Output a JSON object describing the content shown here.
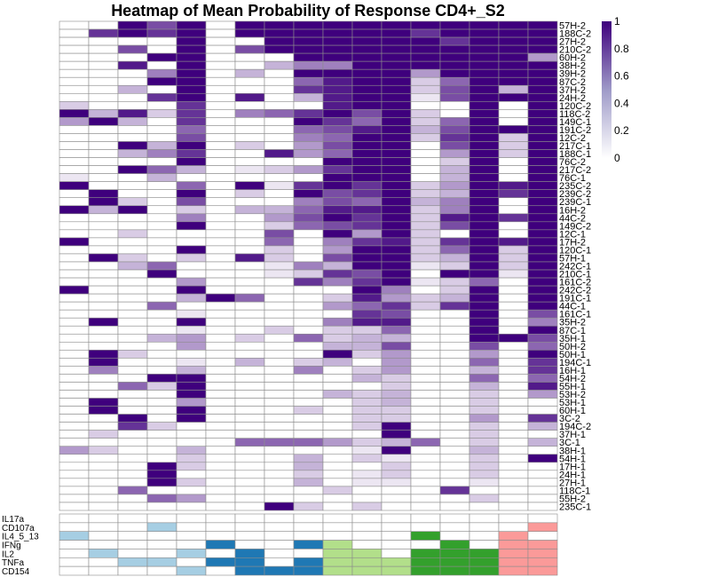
{
  "chart_data": {
    "type": "heatmap",
    "title": "Heatmap of Mean Probability of Response CD4+_S2",
    "n_columns": 17,
    "row_labels": [
      "57H-2",
      "188C-2",
      "27H-2",
      "210C-2",
      "60H-2",
      "38H-2",
      "39H-2",
      "87C-2",
      "37H-2",
      "24H-2",
      "120C-2",
      "118C-2",
      "149C-1",
      "191C-2",
      "12C-2",
      "217C-1",
      "188C-1",
      "76C-2",
      "217C-2",
      "76C-1",
      "235C-2",
      "239C-2",
      "239C-1",
      "16H-2",
      "44C-2",
      "149C-2",
      "12C-1",
      "17H-2",
      "120C-1",
      "57H-1",
      "242C-1",
      "210C-1",
      "161C-2",
      "242C-2",
      "191C-1",
      "44C-1",
      "161C-1",
      "35H-2",
      "87C-1",
      "35H-1",
      "50H-2",
      "50H-1",
      "194C-1",
      "16H-1",
      "54H-2",
      "55H-1",
      "53H-2",
      "53H-1",
      "60H-1",
      "3C-2",
      "194C-2",
      "37H-1",
      "3C-1",
      "38H-1",
      "54H-1",
      "17H-1",
      "24H-1",
      "27H-1",
      "118C-1",
      "55H-2",
      "235C-1"
    ],
    "values": [
      [
        0,
        0,
        1,
        0.7,
        1,
        0,
        1,
        1,
        1,
        1,
        1,
        1,
        1,
        1,
        1,
        1,
        1
      ],
      [
        0,
        0.8,
        1,
        0.8,
        1,
        0,
        1,
        1,
        1,
        1,
        1,
        1,
        0.8,
        1,
        1,
        1,
        1
      ],
      [
        0,
        0,
        0,
        0,
        1,
        0,
        0,
        1,
        1,
        1,
        1,
        1,
        1,
        0.8,
        1,
        1,
        1
      ],
      [
        0,
        0,
        0.7,
        0,
        1,
        0,
        0.7,
        1,
        1,
        1,
        1,
        1,
        1,
        1,
        1,
        1,
        1
      ],
      [
        0,
        0,
        0,
        1,
        1,
        0,
        0,
        0,
        1,
        1,
        1,
        1,
        1,
        1,
        1,
        1,
        0.4
      ],
      [
        0,
        0,
        0.9,
        0,
        1,
        0,
        0,
        0.3,
        0.5,
        0.5,
        1,
        1,
        1,
        1,
        1,
        1,
        1
      ],
      [
        0,
        0,
        0,
        0.5,
        1,
        0,
        0.3,
        0,
        1,
        1,
        1,
        1,
        0.4,
        1,
        1,
        1,
        1
      ],
      [
        0,
        0,
        0,
        1,
        1,
        0,
        0,
        0,
        0.6,
        0.9,
        1,
        1,
        0.2,
        0.6,
        1,
        1,
        1
      ],
      [
        0,
        0,
        0.3,
        0,
        1,
        0,
        0,
        0,
        0.8,
        0.9,
        1,
        1,
        0.2,
        0.7,
        1,
        0.3,
        1
      ],
      [
        0,
        0,
        0,
        0.8,
        1,
        0,
        0.9,
        0,
        0.3,
        0.9,
        1,
        1,
        0.1,
        0.7,
        1,
        1,
        1
      ],
      [
        0.2,
        0,
        0,
        0,
        0.8,
        0,
        0,
        0,
        0,
        0.9,
        1,
        1,
        0,
        0,
        1,
        0,
        1
      ],
      [
        1,
        0.3,
        0.9,
        0.2,
        0.8,
        0,
        0.5,
        0.6,
        0.8,
        1,
        0.7,
        1,
        0.2,
        0,
        1,
        0,
        1
      ],
      [
        0.4,
        1,
        0.3,
        0,
        0.8,
        0,
        0,
        0,
        1,
        0.8,
        0.6,
        1,
        0.2,
        0.6,
        1,
        0,
        1
      ],
      [
        0,
        0,
        0,
        0,
        0.6,
        0,
        0,
        0,
        0.6,
        0.7,
        0.9,
        1,
        0.3,
        0.7,
        1,
        1,
        1
      ],
      [
        0,
        0,
        0,
        0,
        0.7,
        0,
        0,
        0,
        0.5,
        0.6,
        1,
        1,
        0.2,
        0.8,
        1,
        0.2,
        1
      ],
      [
        0,
        0,
        1,
        0.3,
        1,
        0,
        0.2,
        0,
        0.4,
        0.7,
        1,
        1,
        0,
        0.7,
        1,
        0.2,
        1
      ],
      [
        0,
        0,
        0.3,
        0.5,
        0.8,
        0,
        0,
        0.9,
        0.4,
        0.6,
        1,
        1,
        0,
        0.4,
        1,
        0.2,
        1
      ],
      [
        0,
        0,
        0,
        0,
        1,
        0,
        0,
        0,
        0,
        1,
        1,
        1,
        0,
        0.2,
        1,
        0,
        1
      ],
      [
        0,
        0,
        1,
        0.6,
        0.3,
        0,
        0.1,
        0.2,
        0.4,
        0.8,
        1,
        1,
        0,
        0.3,
        1,
        0,
        1
      ],
      [
        0.1,
        0,
        0,
        0.3,
        0,
        0,
        0,
        0,
        0,
        1,
        1,
        1,
        0,
        0.3,
        1,
        0,
        1
      ],
      [
        1,
        0,
        0,
        0,
        0.6,
        0,
        1,
        0.1,
        0.8,
        1,
        0.8,
        1,
        0.2,
        0.4,
        1,
        0.9,
        1
      ],
      [
        0,
        1,
        0,
        0,
        1,
        0,
        0.2,
        0,
        1,
        0.7,
        0.8,
        1,
        0.2,
        0.3,
        1,
        0.8,
        1
      ],
      [
        0,
        1,
        0.2,
        0,
        0.7,
        0,
        0,
        0,
        0.5,
        0.7,
        0.6,
        1,
        0.3,
        0.5,
        1,
        0,
        1
      ],
      [
        1,
        0.3,
        1,
        0,
        0.2,
        0,
        0.3,
        0.3,
        0.6,
        0.9,
        0.9,
        1,
        0.2,
        0.5,
        1,
        0,
        1
      ],
      [
        0,
        0,
        0,
        0,
        0.5,
        0,
        0,
        0.4,
        0.7,
        1,
        0.8,
        1,
        0.2,
        0.9,
        1,
        0.8,
        1
      ],
      [
        0,
        0,
        0,
        0,
        1,
        0,
        0,
        0.2,
        0.6,
        0.7,
        0.8,
        1,
        0.2,
        0.7,
        1,
        0,
        1
      ],
      [
        0,
        0,
        0.2,
        0,
        0,
        0,
        0,
        0.7,
        0,
        1,
        0.4,
        1,
        0.2,
        0,
        1,
        0,
        1
      ],
      [
        1,
        0,
        0,
        0,
        0,
        0,
        0,
        0.6,
        0,
        0.5,
        0.8,
        0.9,
        0.2,
        0.8,
        1,
        0.9,
        1
      ],
      [
        0,
        0,
        0,
        0,
        1,
        0,
        0,
        0.2,
        0,
        0.4,
        1,
        1,
        0.2,
        0.6,
        1,
        0.2,
        1
      ],
      [
        0,
        1,
        0.2,
        0,
        0.2,
        0,
        0.9,
        0.2,
        0,
        0.7,
        1,
        1,
        0.2,
        0.3,
        1,
        0.2,
        1
      ],
      [
        0,
        0,
        0.3,
        0.6,
        0,
        0,
        0,
        0.1,
        0.5,
        0.3,
        1,
        1,
        0.1,
        0.2,
        1,
        0.2,
        1
      ],
      [
        0,
        0,
        0,
        1,
        0,
        0,
        0,
        0.1,
        0.2,
        0.8,
        0.7,
        1,
        0,
        1,
        1,
        0.1,
        1
      ],
      [
        0,
        0,
        0,
        0,
        0.4,
        0,
        0,
        0,
        0.8,
        0.5,
        0.8,
        1,
        0.1,
        0.2,
        0.6,
        0,
        1
      ],
      [
        1,
        0,
        0,
        0,
        1,
        0,
        0,
        0,
        0,
        0,
        1,
        0.5,
        0,
        0.2,
        1,
        0,
        1
      ],
      [
        0,
        0,
        0,
        0,
        0.3,
        1,
        0.6,
        0,
        0,
        0.2,
        0.9,
        0.4,
        0.2,
        0.3,
        1,
        0,
        1
      ],
      [
        0,
        0,
        0,
        0.6,
        0,
        0,
        0,
        0,
        0,
        0.4,
        0.6,
        0.8,
        0.2,
        0.8,
        1,
        0,
        1
      ],
      [
        0,
        0,
        0,
        0,
        0.1,
        0,
        0,
        0,
        0,
        0,
        0.8,
        0.7,
        0,
        0,
        1,
        0,
        0.7
      ],
      [
        0,
        1,
        0,
        0,
        1,
        0,
        0,
        0,
        0,
        0.5,
        0.9,
        0.9,
        0,
        0,
        1,
        0,
        0.5
      ],
      [
        0,
        0,
        0,
        0,
        0.1,
        0,
        0,
        0.2,
        0,
        0.2,
        0.2,
        0.6,
        0,
        0,
        1,
        0,
        1
      ],
      [
        0,
        0,
        0,
        0.3,
        0.4,
        0,
        0.2,
        0,
        0.6,
        0.2,
        0.3,
        0.3,
        0,
        0,
        1,
        1,
        0.7
      ],
      [
        0,
        0,
        0,
        0,
        0.4,
        0,
        0,
        0,
        0,
        0.3,
        0.3,
        0.7,
        0,
        0,
        0.7,
        0,
        0.6
      ],
      [
        0,
        1,
        0.2,
        0,
        0,
        0,
        0,
        0,
        0,
        1,
        0.2,
        0.4,
        0,
        0,
        0.4,
        0,
        1
      ],
      [
        0,
        1,
        0,
        0,
        0.1,
        0,
        0.3,
        0,
        0.2,
        0.3,
        0,
        0.4,
        0,
        0,
        0.6,
        0,
        0.8
      ],
      [
        0,
        0.5,
        0,
        0,
        0.3,
        0,
        0,
        0,
        0.5,
        0,
        0.2,
        0.4,
        0,
        0,
        0.3,
        0,
        0.8
      ],
      [
        0,
        0,
        0,
        1,
        1,
        0,
        0,
        0,
        0,
        0,
        0.3,
        0.2,
        0,
        0,
        0.6,
        0,
        0.6
      ],
      [
        0,
        0,
        0.6,
        0.2,
        1,
        0,
        0,
        0,
        0,
        0,
        0,
        0.2,
        0,
        0,
        0.3,
        0,
        0.9
      ],
      [
        0,
        0,
        0,
        0,
        1,
        0,
        0,
        0,
        0,
        0.3,
        0.2,
        0.3,
        0,
        0,
        0.2,
        0,
        0.4
      ],
      [
        0,
        1,
        0,
        0,
        0.4,
        0,
        0,
        0,
        0,
        0,
        0.2,
        0.3,
        0,
        0,
        0.2,
        0,
        0
      ],
      [
        0,
        1,
        0,
        0,
        1,
        0,
        0,
        0,
        0.2,
        0,
        0.2,
        0.2,
        0,
        0,
        0.2,
        0,
        0
      ],
      [
        0,
        0,
        1,
        0,
        1,
        0,
        0,
        0,
        0,
        0,
        0.2,
        0.2,
        0,
        0,
        0.4,
        0,
        0.8
      ],
      [
        0,
        0,
        0.8,
        0.2,
        0,
        0,
        0,
        0,
        0,
        0,
        0.2,
        1,
        0,
        0,
        0.2,
        0,
        0.3
      ],
      [
        0,
        0.2,
        0,
        0,
        0,
        0,
        0,
        0,
        0,
        0,
        0,
        1,
        0,
        0,
        0.2,
        0,
        0
      ],
      [
        0,
        0,
        0,
        0,
        0,
        0,
        0.6,
        0.6,
        0.6,
        0.4,
        0.2,
        0.3,
        0.6,
        0,
        0.2,
        0,
        0.3
      ],
      [
        0.4,
        0.2,
        0,
        0,
        0.3,
        0,
        0,
        0,
        0,
        0,
        0.1,
        1,
        0,
        0,
        0.3,
        0,
        0
      ],
      [
        0,
        0,
        0,
        0,
        0.2,
        0,
        0,
        0,
        0.3,
        0,
        0.2,
        0.1,
        0,
        0,
        0.2,
        0,
        1
      ],
      [
        0,
        0,
        0,
        1,
        0.2,
        0,
        0,
        0,
        0.3,
        0,
        0,
        0.2,
        0,
        0,
        0.2,
        0,
        0
      ],
      [
        0,
        0,
        0,
        1,
        0,
        0,
        0,
        0,
        0.2,
        0,
        0.1,
        0.2,
        0,
        0,
        0.2,
        0,
        0
      ],
      [
        0,
        0,
        0,
        1,
        0.2,
        0,
        0,
        0,
        0.3,
        0,
        0.1,
        0.1,
        0,
        0,
        0.1,
        0,
        0
      ],
      [
        0,
        0,
        0.6,
        0,
        0,
        0,
        0,
        0,
        0,
        0.2,
        0,
        0,
        0,
        0.8,
        0,
        0,
        0
      ],
      [
        0,
        0,
        0,
        0.6,
        0.4,
        0,
        0,
        0,
        0,
        0,
        0,
        0,
        0,
        0,
        0.2,
        0,
        0
      ],
      [
        0,
        0,
        0,
        0,
        0,
        0,
        0,
        1,
        0.2,
        0,
        0.2,
        0,
        0,
        0,
        0,
        0,
        0
      ]
    ],
    "annotation_labels": [
      "IL17a",
      "CD107a",
      "IL4_5_13",
      "IFNg",
      "IL2",
      "TNFa",
      "CD154"
    ],
    "annotation_colors": [
      [
        null,
        null,
        null,
        null,
        null,
        null,
        null,
        null,
        null,
        null,
        null,
        null,
        null,
        null,
        null,
        null,
        null
      ],
      [
        null,
        null,
        null,
        "#a6cee3",
        null,
        null,
        null,
        null,
        null,
        null,
        null,
        null,
        null,
        null,
        null,
        null,
        "#fb9a99"
      ],
      [
        "#a6cee3",
        null,
        null,
        null,
        null,
        null,
        null,
        null,
        null,
        null,
        null,
        null,
        "#33a02c",
        null,
        null,
        "#fb9a99",
        null
      ],
      [
        null,
        null,
        null,
        null,
        null,
        "#1f78b4",
        null,
        null,
        "#1f78b4",
        "#b2df8a",
        null,
        null,
        null,
        "#33a02c",
        null,
        "#fb9a99",
        "#fb9a99"
      ],
      [
        null,
        "#a6cee3",
        null,
        null,
        "#a6cee3",
        null,
        "#1f78b4",
        null,
        null,
        "#b2df8a",
        "#b2df8a",
        null,
        "#33a02c",
        "#33a02c",
        "#33a02c",
        "#fb9a99",
        "#fb9a99"
      ],
      [
        null,
        null,
        "#a6cee3",
        "#a6cee3",
        null,
        "#1f78b4",
        "#1f78b4",
        null,
        "#1f78b4",
        "#b2df8a",
        "#b2df8a",
        "#b2df8a",
        "#33a02c",
        "#33a02c",
        "#33a02c",
        "#fb9a99",
        "#fb9a99"
      ],
      [
        null,
        null,
        null,
        null,
        "#a6cee3",
        null,
        "#1f78b4",
        "#1f78b4",
        "#1f78b4",
        "#b2df8a",
        "#b2df8a",
        "#b2df8a",
        "#33a02c",
        "#33a02c",
        "#33a02c",
        "#fb9a99",
        "#fb9a99"
      ]
    ],
    "colorscale": {
      "low": "#ffffff",
      "high": "#3f007d",
      "min": 0,
      "max": 1
    },
    "legend_ticks": [
      "1",
      "0.8",
      "0.6",
      "0.4",
      "0.2",
      "0"
    ],
    "legend_placement": "top-right"
  }
}
